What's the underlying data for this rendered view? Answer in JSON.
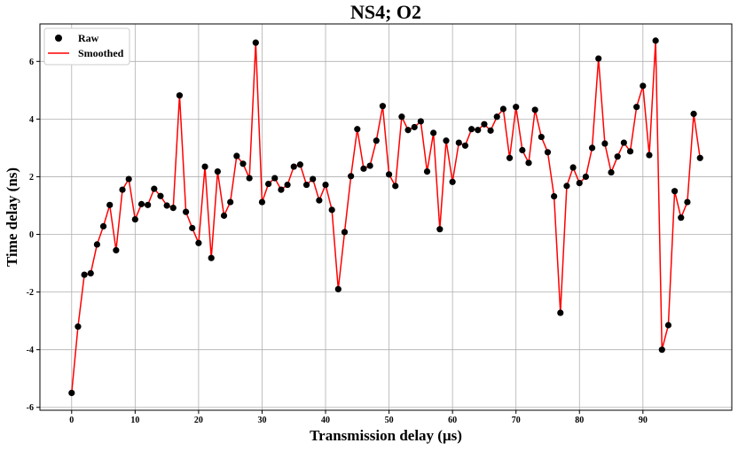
{
  "chart_data": {
    "type": "line",
    "title": "NS4; O2",
    "xlabel": "Transmission delay (μs)",
    "ylabel": "Time delay (ns)",
    "xlim": [
      -5,
      104
    ],
    "ylim": [
      -6.1,
      7.3
    ],
    "xticks": [
      0,
      10,
      20,
      30,
      40,
      50,
      60,
      70,
      80,
      90
    ],
    "yticks": [
      -6,
      -4,
      -2,
      0,
      2,
      4,
      6
    ],
    "grid": true,
    "legend_position": "top-left",
    "x": [
      0,
      1,
      2,
      3,
      4,
      5,
      6,
      7,
      8,
      9,
      10,
      11,
      12,
      13,
      14,
      15,
      16,
      17,
      18,
      19,
      20,
      21,
      22,
      23,
      24,
      25,
      26,
      27,
      28,
      29,
      30,
      31,
      32,
      33,
      34,
      35,
      36,
      37,
      38,
      39,
      40,
      41,
      42,
      43,
      44,
      45,
      46,
      47,
      48,
      49,
      50,
      51,
      52,
      53,
      54,
      55,
      56,
      57,
      58,
      59,
      60,
      61,
      62,
      63,
      64,
      65,
      66,
      67,
      68,
      69,
      70,
      71,
      72,
      73,
      74,
      75,
      76,
      77,
      78,
      79,
      80,
      81,
      82,
      83,
      84,
      85,
      86,
      87,
      88,
      89,
      90,
      91,
      92,
      93,
      94,
      95,
      96,
      97,
      98,
      99
    ],
    "series": [
      {
        "name": "Raw",
        "style": "markers",
        "color": "#000000",
        "values": [
          -5.5,
          -3.2,
          -1.4,
          -1.35,
          -0.35,
          0.28,
          1.02,
          -0.55,
          1.55,
          1.92,
          0.52,
          1.05,
          1.02,
          1.58,
          1.33,
          1.0,
          0.92,
          4.82,
          0.78,
          0.22,
          -0.3,
          2.35,
          -0.82,
          2.18,
          0.65,
          1.12,
          2.72,
          2.45,
          1.95,
          6.65,
          1.12,
          1.75,
          1.95,
          1.55,
          1.72,
          2.35,
          2.42,
          1.72,
          1.92,
          1.18,
          1.72,
          0.85,
          -1.9,
          0.08,
          2.02,
          3.65,
          2.28,
          2.38,
          3.25,
          4.45,
          2.08,
          1.68,
          4.08,
          3.62,
          3.72,
          3.92,
          2.18,
          3.52,
          0.18,
          3.25,
          1.82,
          3.18,
          3.08,
          3.65,
          3.62,
          3.82,
          3.6,
          4.08,
          4.35,
          2.65,
          4.42,
          2.92,
          2.48,
          4.32,
          3.38,
          2.85,
          1.32,
          -2.72,
          1.68,
          2.32,
          1.78,
          2.0,
          3.0,
          6.1,
          3.15,
          2.15,
          2.7,
          3.18,
          2.88,
          4.42,
          5.15,
          2.75,
          6.72,
          -4.0,
          -3.15,
          1.5,
          0.58,
          1.12,
          4.18,
          2.65
        ]
      },
      {
        "name": "Smoothed",
        "style": "line",
        "color": "#ff0000",
        "values": [
          -5.5,
          -3.2,
          -1.4,
          -1.35,
          -0.35,
          0.28,
          1.02,
          -0.55,
          1.55,
          1.92,
          0.52,
          1.05,
          1.02,
          1.58,
          1.33,
          1.0,
          0.92,
          4.82,
          0.78,
          0.22,
          -0.3,
          2.35,
          -0.82,
          2.18,
          0.65,
          1.12,
          2.72,
          2.45,
          1.95,
          6.65,
          1.12,
          1.75,
          1.95,
          1.55,
          1.72,
          2.35,
          2.42,
          1.72,
          1.92,
          1.18,
          1.72,
          0.85,
          -1.9,
          0.08,
          2.02,
          3.65,
          2.28,
          2.38,
          3.25,
          4.45,
          2.08,
          1.68,
          4.08,
          3.62,
          3.72,
          3.92,
          2.18,
          3.52,
          0.18,
          3.25,
          1.82,
          3.18,
          3.08,
          3.65,
          3.62,
          3.82,
          3.6,
          4.08,
          4.35,
          2.65,
          4.42,
          2.92,
          2.48,
          4.32,
          3.38,
          2.85,
          1.32,
          -2.72,
          1.68,
          2.32,
          1.78,
          2.0,
          3.0,
          6.1,
          3.15,
          2.15,
          2.7,
          3.18,
          2.88,
          4.42,
          5.15,
          2.75,
          6.72,
          -4.0,
          -3.15,
          1.5,
          0.58,
          1.12,
          4.18,
          2.65
        ]
      }
    ]
  }
}
